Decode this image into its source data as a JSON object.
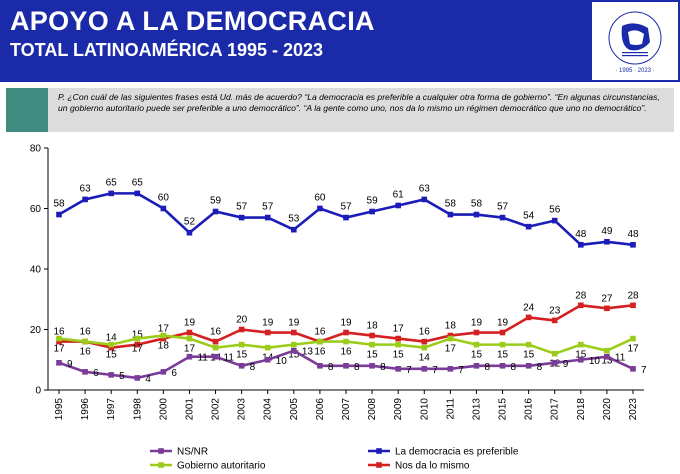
{
  "header": {
    "title": "APOYO A LA DEMOCRACIA",
    "subtitle": "TOTAL LATINOAMÉRICA 1995 - 2023",
    "logo_text": "LATINOBARÓMETRO · 1995 · 2023 ·"
  },
  "question": {
    "text": "P. ¿Con cuál de las siguientes frases está Ud. más de acuerdo? “La democracia es preferible a cualquier otra forma de gobierno”. “En algunas circunstancias, un gobierno autoritario puede ser preferible a uno democrático”. “A la gente como uno, nos da lo mismo un régimen democrático que uno no democrático”."
  },
  "colors": {
    "header_bg": "#1a2aa8",
    "democracy": "#1c1cb8",
    "nada": "#d42020",
    "autoritario": "#9ccc1a",
    "nsnr": "#7a3c98"
  },
  "chart_data": {
    "type": "line",
    "title": "APOYO A LA DEMOCRACIA",
    "subtitle": "TOTAL LATINOAMÉRICA 1995 - 2023",
    "categories": [
      "1995",
      "1996",
      "1997",
      "1998",
      "2000",
      "2001",
      "2002",
      "2003",
      "2004",
      "2005",
      "2006",
      "2007",
      "2008",
      "2009",
      "2010",
      "2011",
      "2013",
      "2015",
      "2016",
      "2017",
      "2018",
      "2020",
      "2023"
    ],
    "ylim": [
      0,
      80
    ],
    "yticks": [
      0,
      20,
      40,
      60,
      80
    ],
    "series": [
      {
        "name": "La democracia es preferible",
        "color": "#1c1cb8",
        "values": [
          58,
          63,
          65,
          65,
          60,
          52,
          59,
          57,
          57,
          53,
          60,
          57,
          59,
          61,
          63,
          58,
          58,
          57,
          54,
          56,
          48,
          49,
          48
        ]
      },
      {
        "name": "Nos da lo mismo",
        "color": "#d42020",
        "values": [
          16,
          16,
          14,
          15,
          17,
          19,
          16,
          20,
          19,
          19,
          16,
          19,
          18,
          17,
          16,
          18,
          19,
          19,
          24,
          23,
          28,
          27,
          28
        ]
      },
      {
        "name": "Gobierno autoritario",
        "color": "#9ccc1a",
        "values": [
          17,
          16,
          15,
          17,
          18,
          17,
          14,
          15,
          14,
          15,
          16,
          16,
          15,
          15,
          14,
          17,
          15,
          15,
          15,
          12,
          15,
          13,
          17
        ]
      },
      {
        "name": "NS/NR",
        "color": "#7a3c98",
        "values": [
          9,
          6,
          5,
          4,
          6,
          11,
          11,
          8,
          10,
          13,
          8,
          8,
          8,
          7,
          7,
          7,
          8,
          8,
          8,
          9,
          10,
          11,
          7
        ]
      }
    ],
    "legend": [
      {
        "name": "NS/NR",
        "color": "#7a3c98"
      },
      {
        "name": "La democracia es preferible",
        "color": "#1c1cb8"
      },
      {
        "name": "Gobierno autoritario",
        "color": "#9ccc1a"
      },
      {
        "name": "Nos da lo mismo",
        "color": "#d42020"
      }
    ],
    "legend_position": "bottom"
  }
}
